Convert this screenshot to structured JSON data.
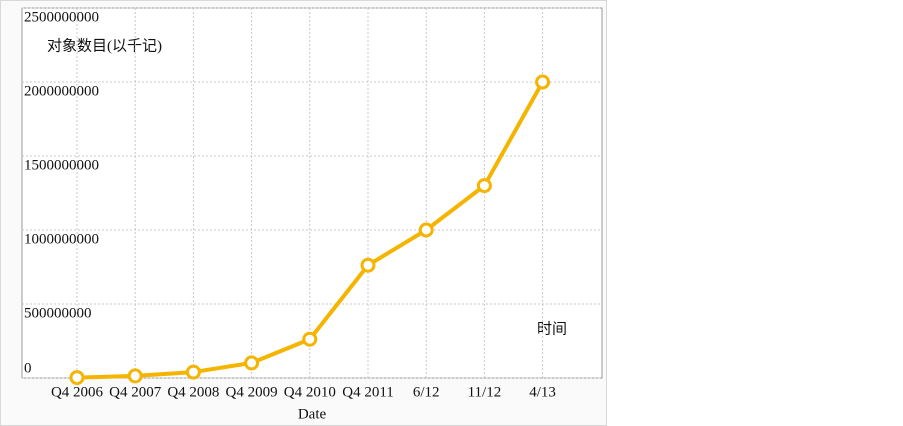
{
  "chart_data": {
    "type": "line",
    "y_label": "对象数目(以千记)",
    "x_label": "Date",
    "annotation": "时间",
    "categories": [
      "Q4 2006",
      "Q4 2007",
      "Q4 2008",
      "Q4 2009",
      "Q4 2010",
      "Q4 2011",
      "6/12",
      "11/12",
      "4/13"
    ],
    "series": [
      {
        "color": "#f5b400",
        "values": [
          2900000,
          14000000,
          40000000,
          102000000,
          262000000,
          762000000,
          1000000000,
          1300000000,
          2000000000
        ]
      }
    ],
    "ylim": [
      0,
      2500000000
    ],
    "yticks": [
      0,
      500000000,
      1000000000,
      1500000000,
      2000000000,
      2500000000
    ],
    "grid": true
  }
}
